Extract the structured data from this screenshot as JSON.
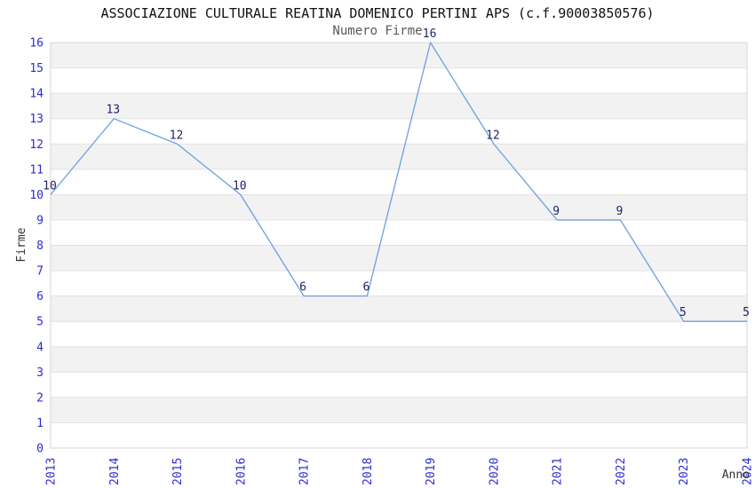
{
  "header": {
    "title": "ASSOCIAZIONE CULTURALE REATINA DOMENICO PERTINI APS (c.f.90003850576)",
    "subtitle": "Numero Firme"
  },
  "chart_data": {
    "type": "line",
    "title": "ASSOCIAZIONE CULTURALE REATINA DOMENICO PERTINI APS (c.f.90003850576)",
    "subtitle": "Numero Firme",
    "xlabel": "Anno",
    "ylabel": "Firme",
    "categories": [
      "2013",
      "2014",
      "2015",
      "2016",
      "2017",
      "2018",
      "2019",
      "2020",
      "2021",
      "2022",
      "2023",
      "2024"
    ],
    "series": [
      {
        "name": "Numero Firme",
        "values": [
          10,
          13,
          12,
          10,
          6,
          6,
          16,
          12,
          9,
          9,
          5,
          5
        ]
      }
    ],
    "point_labels": [
      "10",
      "13",
      "12",
      "10",
      "6",
      "6",
      "16",
      "12",
      "9",
      "9",
      "5",
      "5"
    ],
    "ylim": [
      0,
      16
    ],
    "ytick_step": 1,
    "grid": "horizontal-bands-alternating",
    "legend": "none",
    "colors": {
      "line": "#6D9EE3",
      "tick_label": "#2B2BD6",
      "point_label": "#22226B",
      "axis_label": "#333333",
      "band_gray": "#f2f2f2",
      "band_white": "#ffffff",
      "gridline": "#e2e2e2",
      "plot_border": "#d6d6d6",
      "title": "#111111",
      "subtitle": "#585858"
    }
  }
}
